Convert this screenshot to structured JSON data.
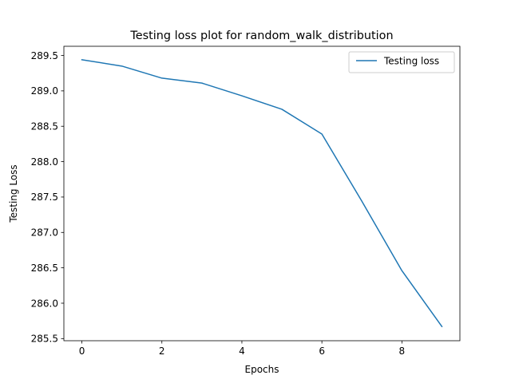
{
  "chart_data": {
    "type": "line",
    "title": "Testing loss plot for random_walk_distribution",
    "xlabel": "Epochs",
    "ylabel": "Testing Loss",
    "xlim": [
      -0.45,
      9.45
    ],
    "ylim": [
      285.47,
      289.63
    ],
    "xticks": [
      0,
      2,
      4,
      6,
      8
    ],
    "xtick_labels": [
      "0",
      "2",
      "4",
      "6",
      "8"
    ],
    "yticks": [
      285.5,
      286.0,
      286.5,
      287.0,
      287.5,
      288.0,
      288.5,
      289.0,
      289.5
    ],
    "ytick_labels": [
      "285.5",
      "286.0",
      "286.5",
      "287.0",
      "287.5",
      "288.0",
      "288.5",
      "289.0",
      "289.5"
    ],
    "grid": false,
    "legend_position": "upper right",
    "series": [
      {
        "name": "Testing loss",
        "color": "#1f77b4",
        "x": [
          0,
          1,
          2,
          3,
          4,
          5,
          6,
          7,
          8,
          9
        ],
        "y": [
          289.44,
          289.35,
          289.18,
          289.11,
          288.93,
          288.74,
          288.39,
          287.44,
          286.46,
          285.67
        ]
      }
    ]
  }
}
